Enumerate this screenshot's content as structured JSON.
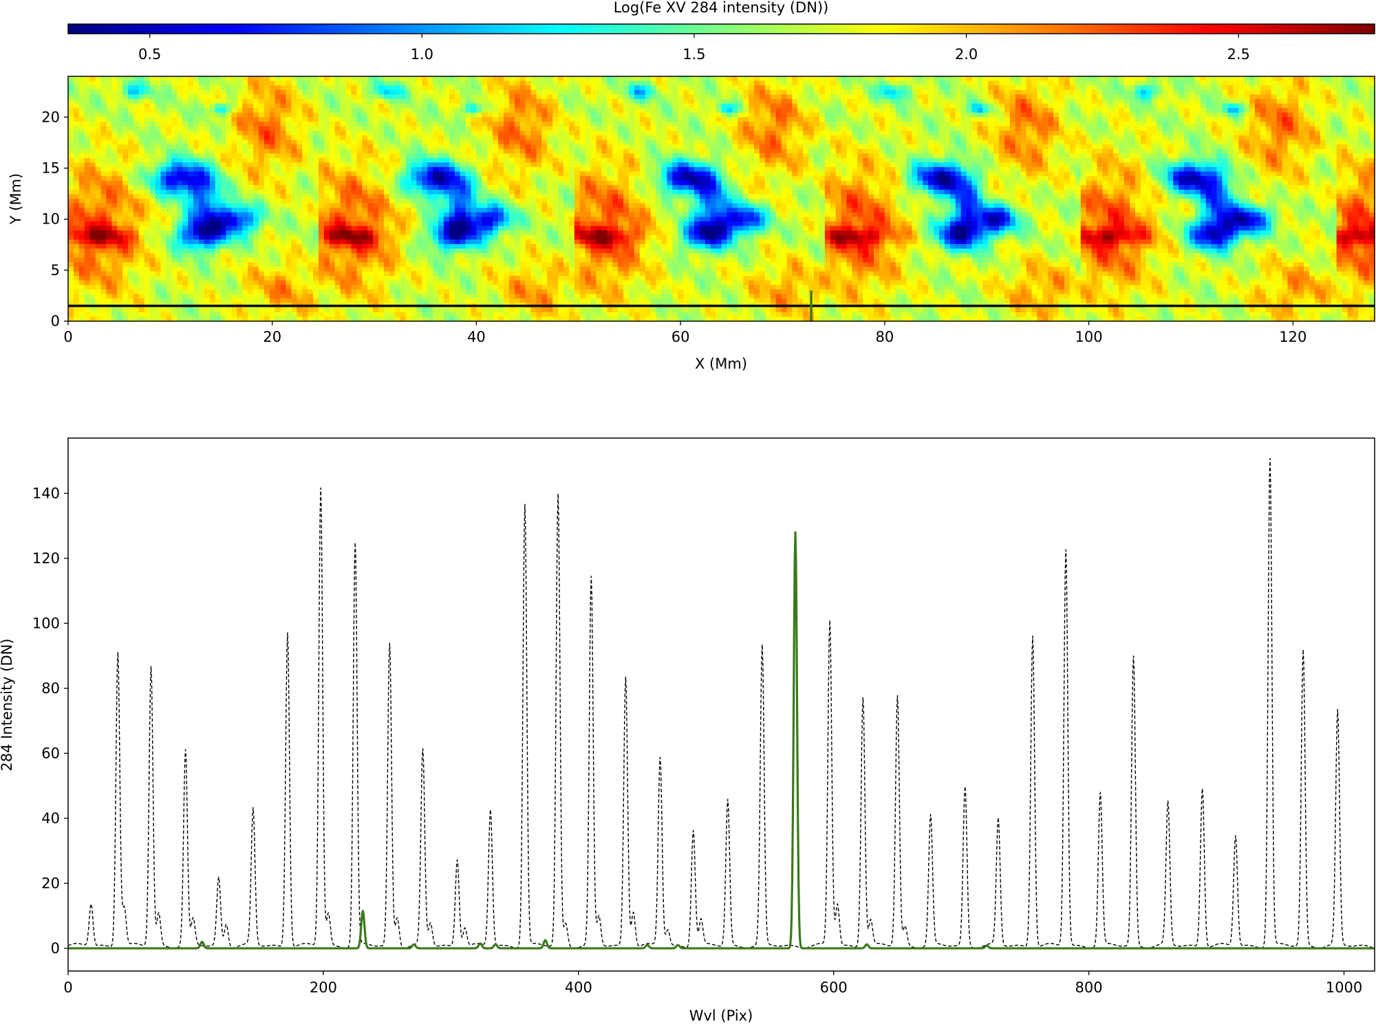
{
  "chart_data": [
    {
      "type": "heatmap",
      "title": "",
      "colorbar": {
        "label": "Log(Fe XV 284 intensity (DN))",
        "range": [
          0.35,
          2.75
        ],
        "ticks": [
          0.5,
          1.0,
          1.5,
          2.0,
          2.5
        ],
        "tick_labels": [
          "0.5",
          "1.0",
          "1.5",
          "2.0",
          "2.5"
        ],
        "colormap": "jet",
        "placement": "top"
      },
      "xlabel": "X (Mm)",
      "ylabel": "Y (Mm)",
      "xlim": [
        0,
        128
      ],
      "ylim": [
        0,
        24
      ],
      "xticks": [
        0,
        20,
        40,
        60,
        80,
        100,
        120
      ],
      "xtick_labels": [
        "0",
        "20",
        "40",
        "60",
        "80",
        "100",
        "120"
      ],
      "yticks": [
        0,
        5,
        10,
        15,
        20
      ],
      "ytick_labels": [
        "0",
        "5",
        "10",
        "15",
        "20"
      ],
      "overlay_lines": [
        {
          "orientation": "horizontal",
          "y": 1.5,
          "color": "#000000"
        },
        {
          "orientation": "vertical",
          "x": 72.8,
          "y_range": [
            0,
            3.0
          ],
          "color": "#3a7a1a"
        }
      ],
      "pattern_period_x": 24.8
    },
    {
      "type": "line",
      "title": "",
      "xlabel": "Wvl (Pix)",
      "ylabel": "284 Intensity (DN)",
      "xlim": [
        0,
        1024
      ],
      "ylim": [
        -7,
        157
      ],
      "xticks": [
        0,
        200,
        400,
        600,
        800,
        1000
      ],
      "xtick_labels": [
        "0",
        "200",
        "400",
        "600",
        "800",
        "1000"
      ],
      "yticks": [
        0,
        20,
        40,
        60,
        80,
        100,
        120,
        140
      ],
      "ytick_labels": [
        "0",
        "20",
        "40",
        "60",
        "80",
        "100",
        "120",
        "140"
      ],
      "grid": false,
      "series": [
        {
          "style": "dashed",
          "color": "#000000",
          "baseline": 0.8,
          "peaks": [
            [
              18,
              13
            ],
            [
              39,
              91
            ],
            [
              44,
              12
            ],
            [
              65,
              86
            ],
            [
              71,
              10
            ],
            [
              92,
              60
            ],
            [
              98,
              8
            ],
            [
              118,
              21
            ],
            [
              124,
              7
            ],
            [
              145,
              42
            ],
            [
              172,
              97
            ],
            [
              198,
              141
            ],
            [
              204,
              10
            ],
            [
              225,
              124
            ],
            [
              252,
              93
            ],
            [
              258,
              9
            ],
            [
              278,
              60
            ],
            [
              284,
              7
            ],
            [
              305,
              27
            ],
            [
              311,
              6
            ],
            [
              331,
              42
            ],
            [
              358,
              136
            ],
            [
              384,
              139
            ],
            [
              390,
              7
            ],
            [
              410,
              113
            ],
            [
              416,
              9
            ],
            [
              437,
              83
            ],
            [
              443,
              11
            ],
            [
              464,
              58
            ],
            [
              470,
              5
            ],
            [
              490,
              36
            ],
            [
              496,
              8
            ],
            [
              517,
              45
            ],
            [
              544,
              92
            ],
            [
              597,
              100
            ],
            [
              603,
              13
            ],
            [
              623,
              77
            ],
            [
              629,
              8
            ],
            [
              650,
              77
            ],
            [
              656,
              6
            ],
            [
              676,
              40
            ],
            [
              703,
              49
            ],
            [
              729,
              39
            ],
            [
              756,
              96
            ],
            [
              782,
              122
            ],
            [
              809,
              47
            ],
            [
              835,
              89
            ],
            [
              862,
              44
            ],
            [
              889,
              49
            ],
            [
              915,
              34
            ],
            [
              942,
              150
            ],
            [
              968,
              91
            ],
            [
              995,
              72
            ]
          ]
        },
        {
          "style": "solid",
          "color": "#3a7a1a",
          "baseline": 0.0,
          "peaks": [
            [
              105,
              2
            ],
            [
              231,
              11.5
            ],
            [
              271,
              1.2
            ],
            [
              323,
              1.5
            ],
            [
              335,
              1.2
            ],
            [
              374,
              2.5
            ],
            [
              454,
              1
            ],
            [
              478,
              1
            ],
            [
              570,
              128
            ],
            [
              626,
              1.2
            ],
            [
              720,
              0.8
            ]
          ]
        }
      ]
    }
  ]
}
